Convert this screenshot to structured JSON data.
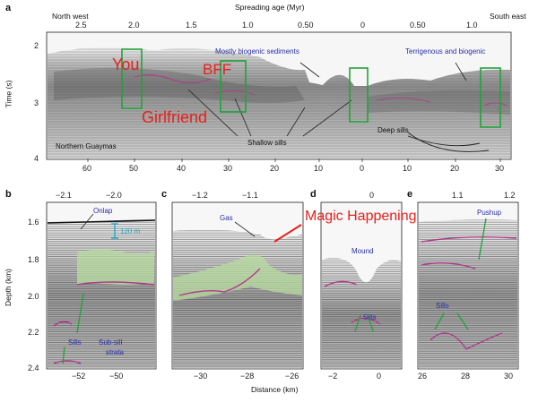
{
  "panel_a": {
    "letter": "a",
    "top_axis_title": "Spreading age (Myr)",
    "top_left_label": "North west",
    "top_right_label": "South east",
    "top_ticks": [
      "2.5",
      "2.0",
      "1.5",
      "1.0",
      "0.50",
      "0",
      "0.50",
      "1.0"
    ],
    "left_axis_title": "Time (s)",
    "left_ticks": [
      "2",
      "3",
      "4"
    ],
    "bottom_ticks": [
      "60",
      "50",
      "40",
      "30",
      "20",
      "10",
      "0",
      "10",
      "20",
      "30"
    ],
    "annotations": {
      "biogenic": "Mostly biogenic sediments",
      "terrigenous": "Terrigenous and biogenic",
      "shallow_sills": "Shallow sills",
      "deep_sills": "Deep sills",
      "guaymas": "Northern Guaymas"
    }
  },
  "meme": {
    "you": "You",
    "bff": "BFF",
    "girlfriend": "Girlfriend",
    "magic": "Magic Happening"
  },
  "panel_b": {
    "letter": "b",
    "top_ticks": [
      "−2.1",
      "−2.0"
    ],
    "left_axis_title": "Depth (km)",
    "left_ticks": [
      "1.6",
      "1.8",
      "2.0",
      "2.2",
      "2.4"
    ],
    "bottom_ticks": [
      "−52",
      "−50"
    ],
    "onlap": "Onlap",
    "scale": "120 m",
    "sills": "Sills",
    "subsill_1": "Sub-sill",
    "subsill_2": "strata"
  },
  "panel_c": {
    "letter": "c",
    "top_ticks": [
      "−1.2",
      "−1.1"
    ],
    "bottom_ticks": [
      "−30",
      "−28",
      "−26"
    ],
    "gas": "Gas"
  },
  "panel_d": {
    "letter": "d",
    "top_ticks": [
      "0"
    ],
    "bottom_ticks": [
      "−2",
      "0"
    ],
    "mound": "Mound",
    "sills": "Sills"
  },
  "panel_e": {
    "letter": "e",
    "top_ticks": [
      "1.1",
      "1.2"
    ],
    "bottom_ticks": [
      "26",
      "28",
      "30"
    ],
    "pushup": "Pushup",
    "sills": "Sills"
  },
  "bottom_axis_title": "Distance (km)",
  "colors": {
    "meme_red": "#e8201c",
    "box_green": "#1fa33a",
    "label_blue": "#2a2fa8",
    "highlight_green": "#b8dca0"
  }
}
